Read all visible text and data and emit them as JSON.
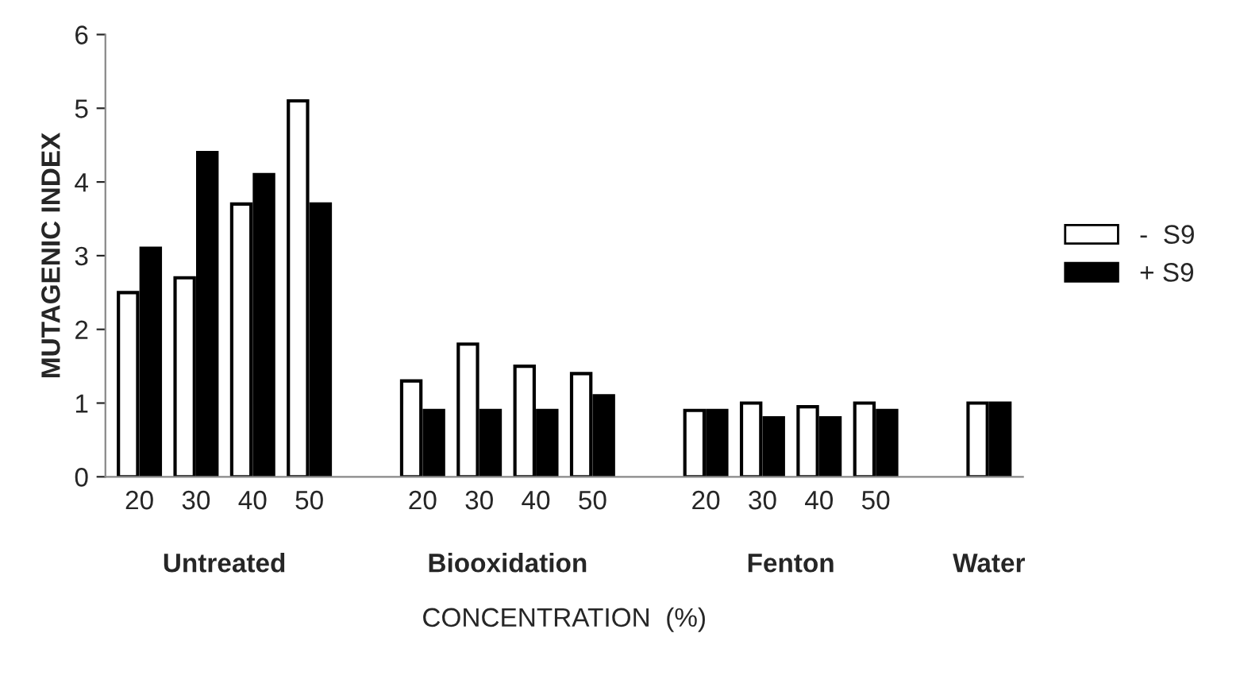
{
  "chart_data": {
    "type": "bar",
    "xlabel": "CONCENTRATION  (%)",
    "ylabel": "MUTAGENIC INDEX",
    "categories": [
      "20",
      "30",
      "40",
      "50",
      null,
      "20",
      "30",
      "40",
      "50",
      null,
      "20",
      "30",
      "40",
      "50",
      null,
      null
    ],
    "series": [
      {
        "name": "-  S9",
        "color": "#ffffff",
        "values": [
          2.5,
          2.7,
          3.7,
          5.1,
          null,
          1.3,
          1.8,
          1.5,
          1.4,
          null,
          0.9,
          1.0,
          0.95,
          1.0,
          null,
          1.0
        ]
      },
      {
        "name": "+ S9",
        "color": "#000000",
        "values": [
          3.1,
          4.4,
          4.1,
          3.7,
          null,
          0.9,
          0.9,
          0.9,
          1.1,
          null,
          0.9,
          0.8,
          0.8,
          0.9,
          null,
          1.0
        ]
      }
    ],
    "annotations": [
      "Untreated",
      "Biooxidation",
      "Fenton",
      "Water"
    ],
    "ylim": [
      0,
      6
    ],
    "yticks": [
      0,
      1,
      2,
      3,
      4,
      5,
      6
    ],
    "legend": "right",
    "grid": false
  }
}
